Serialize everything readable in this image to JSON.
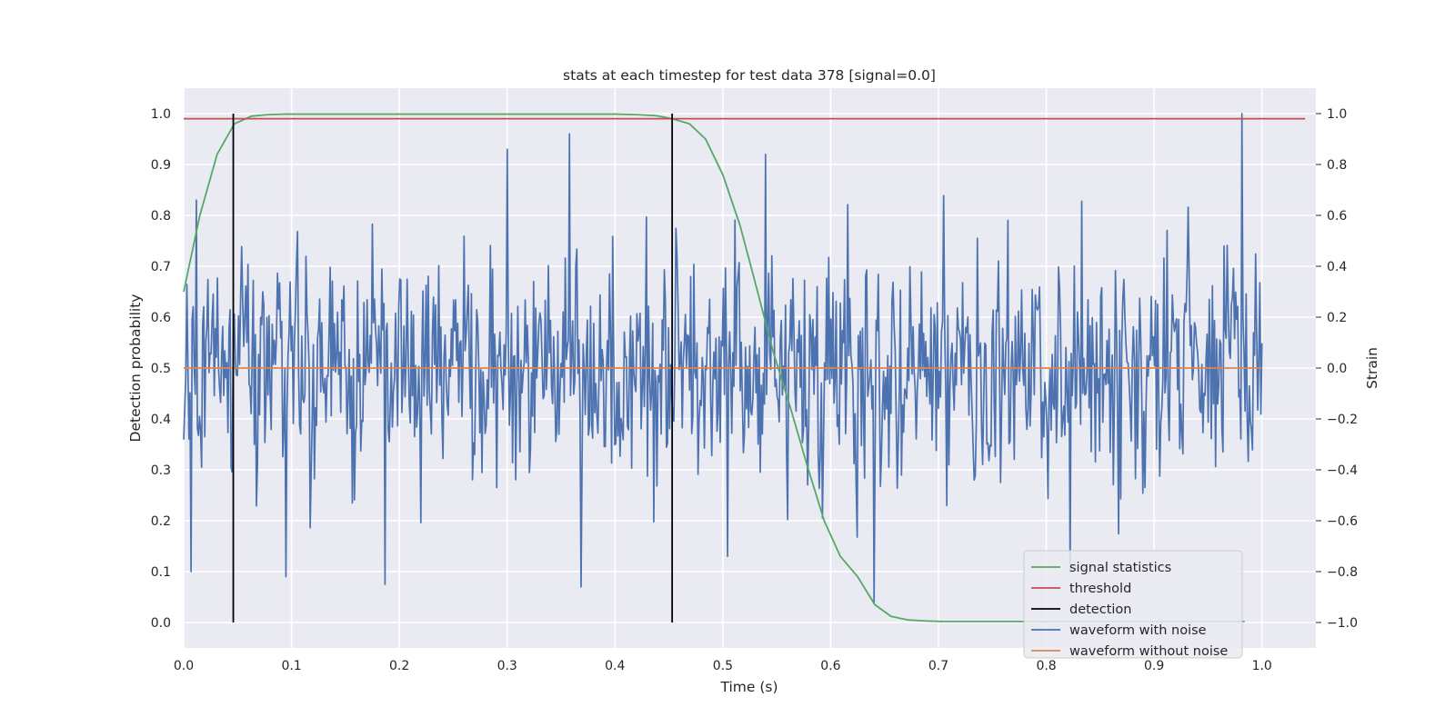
{
  "chart_data": {
    "type": "line",
    "title": "stats at each timestep for test data 378 [signal=0.0]",
    "xlabel": "Time (s)",
    "ylabel": "Detection probability",
    "y2label": "Strain",
    "xlim": [
      0.0,
      1.05
    ],
    "ylim": [
      -0.05,
      1.05
    ],
    "y2lim": [
      -1.1,
      1.1
    ],
    "grid": true,
    "legend_position": "bottom-right",
    "x_ticks": [
      "0.0",
      "0.1",
      "0.2",
      "0.3",
      "0.4",
      "0.5",
      "0.6",
      "0.7",
      "0.8",
      "0.9",
      "1.0"
    ],
    "y_ticks": [
      "0.0",
      "0.1",
      "0.2",
      "0.3",
      "0.4",
      "0.5",
      "0.6",
      "0.7",
      "0.8",
      "0.9",
      "1.0"
    ],
    "y2_ticks": [
      "−1.0",
      "−0.8",
      "−0.6",
      "−0.4",
      "−0.2",
      "0.0",
      "0.2",
      "0.4",
      "0.6",
      "0.8",
      "1.0"
    ],
    "series": [
      {
        "name": "signal statistics",
        "color": "#55a868",
        "axis": "left",
        "x": [
          0.0,
          0.015,
          0.031,
          0.047,
          0.063,
          0.078,
          0.094,
          0.11,
          0.2,
          0.3,
          0.4,
          0.42,
          0.438,
          0.453,
          0.469,
          0.484,
          0.5,
          0.516,
          0.531,
          0.547,
          0.563,
          0.578,
          0.594,
          0.609,
          0.625,
          0.641,
          0.656,
          0.672,
          0.688,
          0.703,
          0.75,
          0.8,
          0.9,
          0.984
        ],
        "y": [
          0.65,
          0.8,
          0.92,
          0.98,
          0.995,
          0.998,
          0.999,
          0.999,
          0.999,
          0.999,
          0.999,
          0.998,
          0.996,
          0.99,
          0.98,
          0.95,
          0.88,
          0.78,
          0.66,
          0.53,
          0.42,
          0.31,
          0.2,
          0.13,
          0.09,
          0.035,
          0.012,
          0.005,
          0.003,
          0.002,
          0.002,
          0.002,
          0.002,
          0.002
        ]
      },
      {
        "name": "threshold",
        "color": "#c44e52",
        "axis": "left",
        "x": [
          0.0,
          1.04
        ],
        "y": [
          0.99,
          0.99
        ]
      },
      {
        "name": "detection",
        "color": "#000000",
        "axis": "left",
        "type": "vlines",
        "x": [
          0.046,
          0.453
        ],
        "y": [
          0.0,
          1.0
        ]
      },
      {
        "name": "waveform with noise",
        "color": "#4c72b0",
        "axis": "right",
        "type": "noise",
        "x_range": [
          0.0,
          1.0
        ],
        "points": 1024,
        "amplitude": 0.26,
        "spikes": [
          {
            "x": 0.981,
            "y": 1.0
          },
          {
            "x": 0.369,
            "y": -0.86
          },
          {
            "x": 0.187,
            "y": -0.85
          },
          {
            "x": 0.095,
            "y": -0.82
          },
          {
            "x": 0.007,
            "y": -0.8
          },
          {
            "x": 0.64,
            "y": -0.92
          },
          {
            "x": 0.822,
            "y": -0.8
          },
          {
            "x": 0.3,
            "y": 0.86
          },
          {
            "x": 0.358,
            "y": 0.92
          },
          {
            "x": 0.54,
            "y": 0.84
          },
          {
            "x": 0.012,
            "y": 0.66
          },
          {
            "x": 0.504,
            "y": -0.74
          }
        ]
      },
      {
        "name": "waveform without noise",
        "color": "#dd8452",
        "axis": "right",
        "x": [
          0.0,
          1.0
        ],
        "y": [
          0.0,
          0.0
        ]
      }
    ]
  }
}
